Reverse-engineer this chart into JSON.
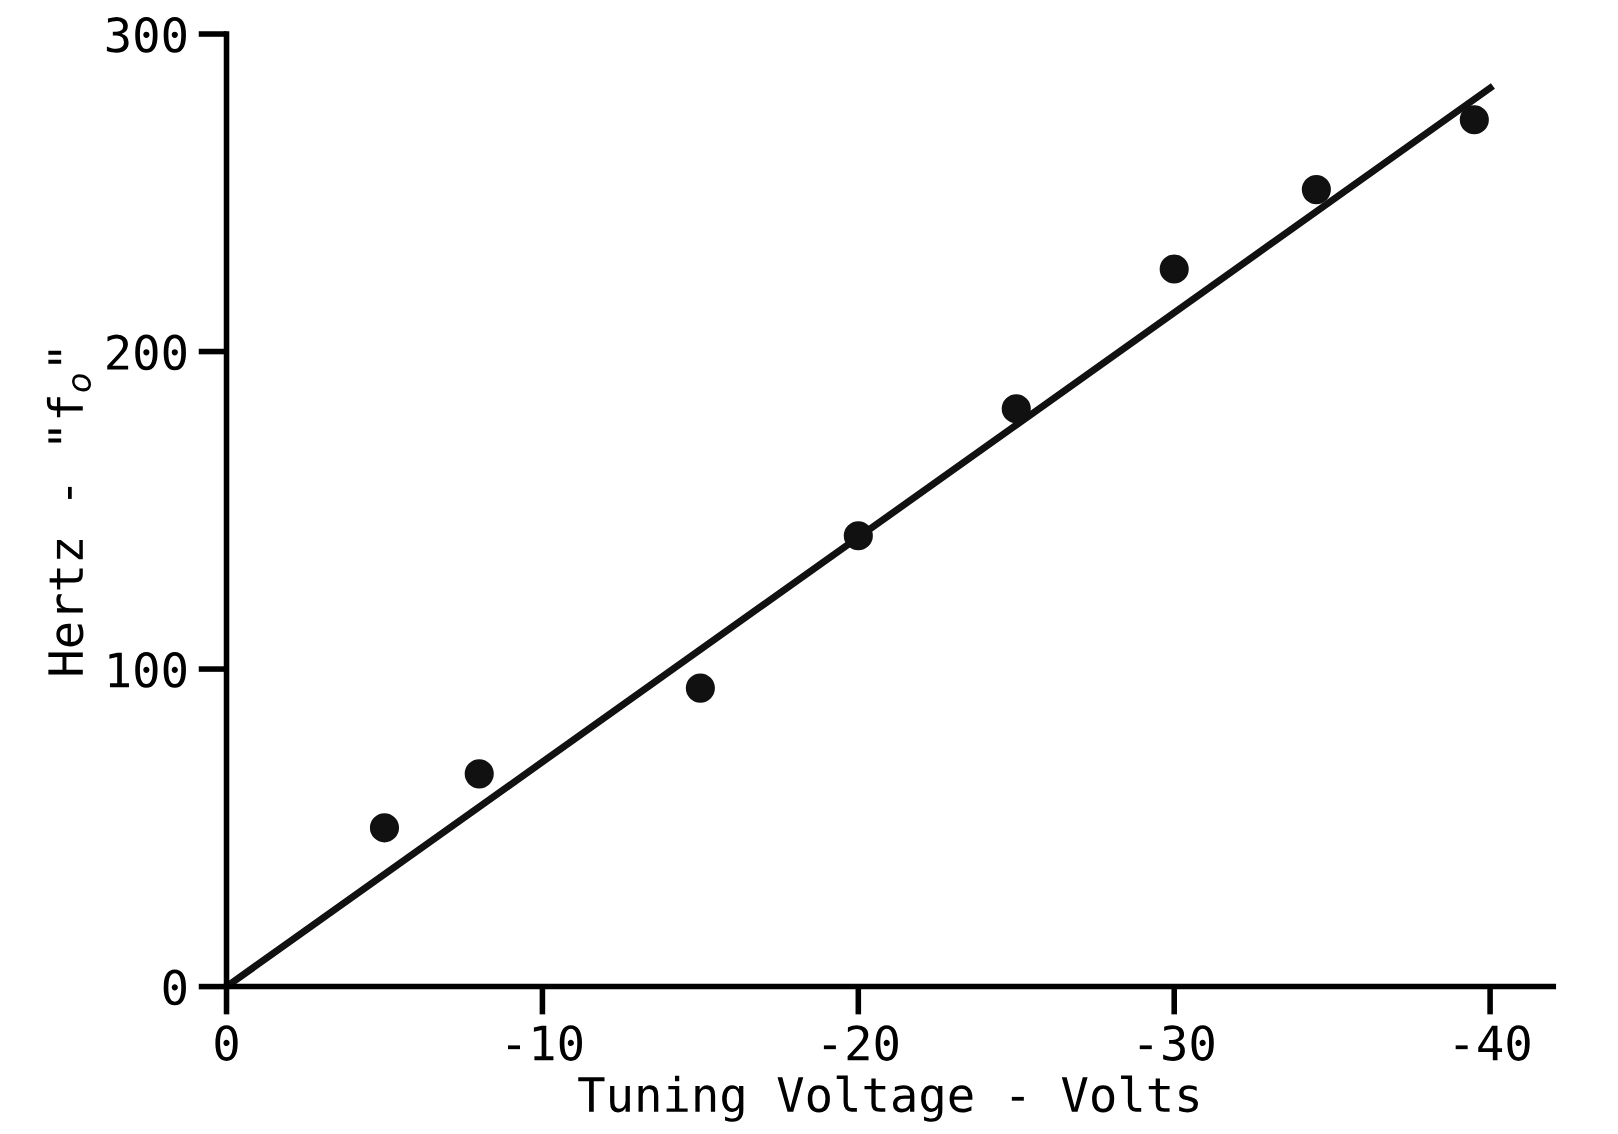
{
  "chart_data": {
    "type": "scatter",
    "xlabel": "Tuning Voltage - Volts",
    "ylabel": "Hertz - \"f$_{o}$\"",
    "xlim": [
      0,
      -42
    ],
    "ylim": [
      0,
      300
    ],
    "xticks": [
      0,
      -10,
      -20,
      -30,
      -40
    ],
    "yticks": [
      0,
      100,
      200,
      300
    ],
    "grid": false,
    "legend": false,
    "series": [
      {
        "type": "scatter",
        "color": "#111111",
        "marker": "circle",
        "x": [
          -5,
          -8,
          -15,
          -20,
          -25,
          -30,
          -34.5,
          -39.5
        ],
        "values": [
          50,
          67,
          94,
          142,
          182,
          226,
          251,
          273
        ]
      },
      {
        "type": "line",
        "color": "#111111",
        "marker": "none",
        "line_style": "solid",
        "x": [
          0,
          -40
        ],
        "values": [
          0,
          283
        ]
      }
    ]
  }
}
